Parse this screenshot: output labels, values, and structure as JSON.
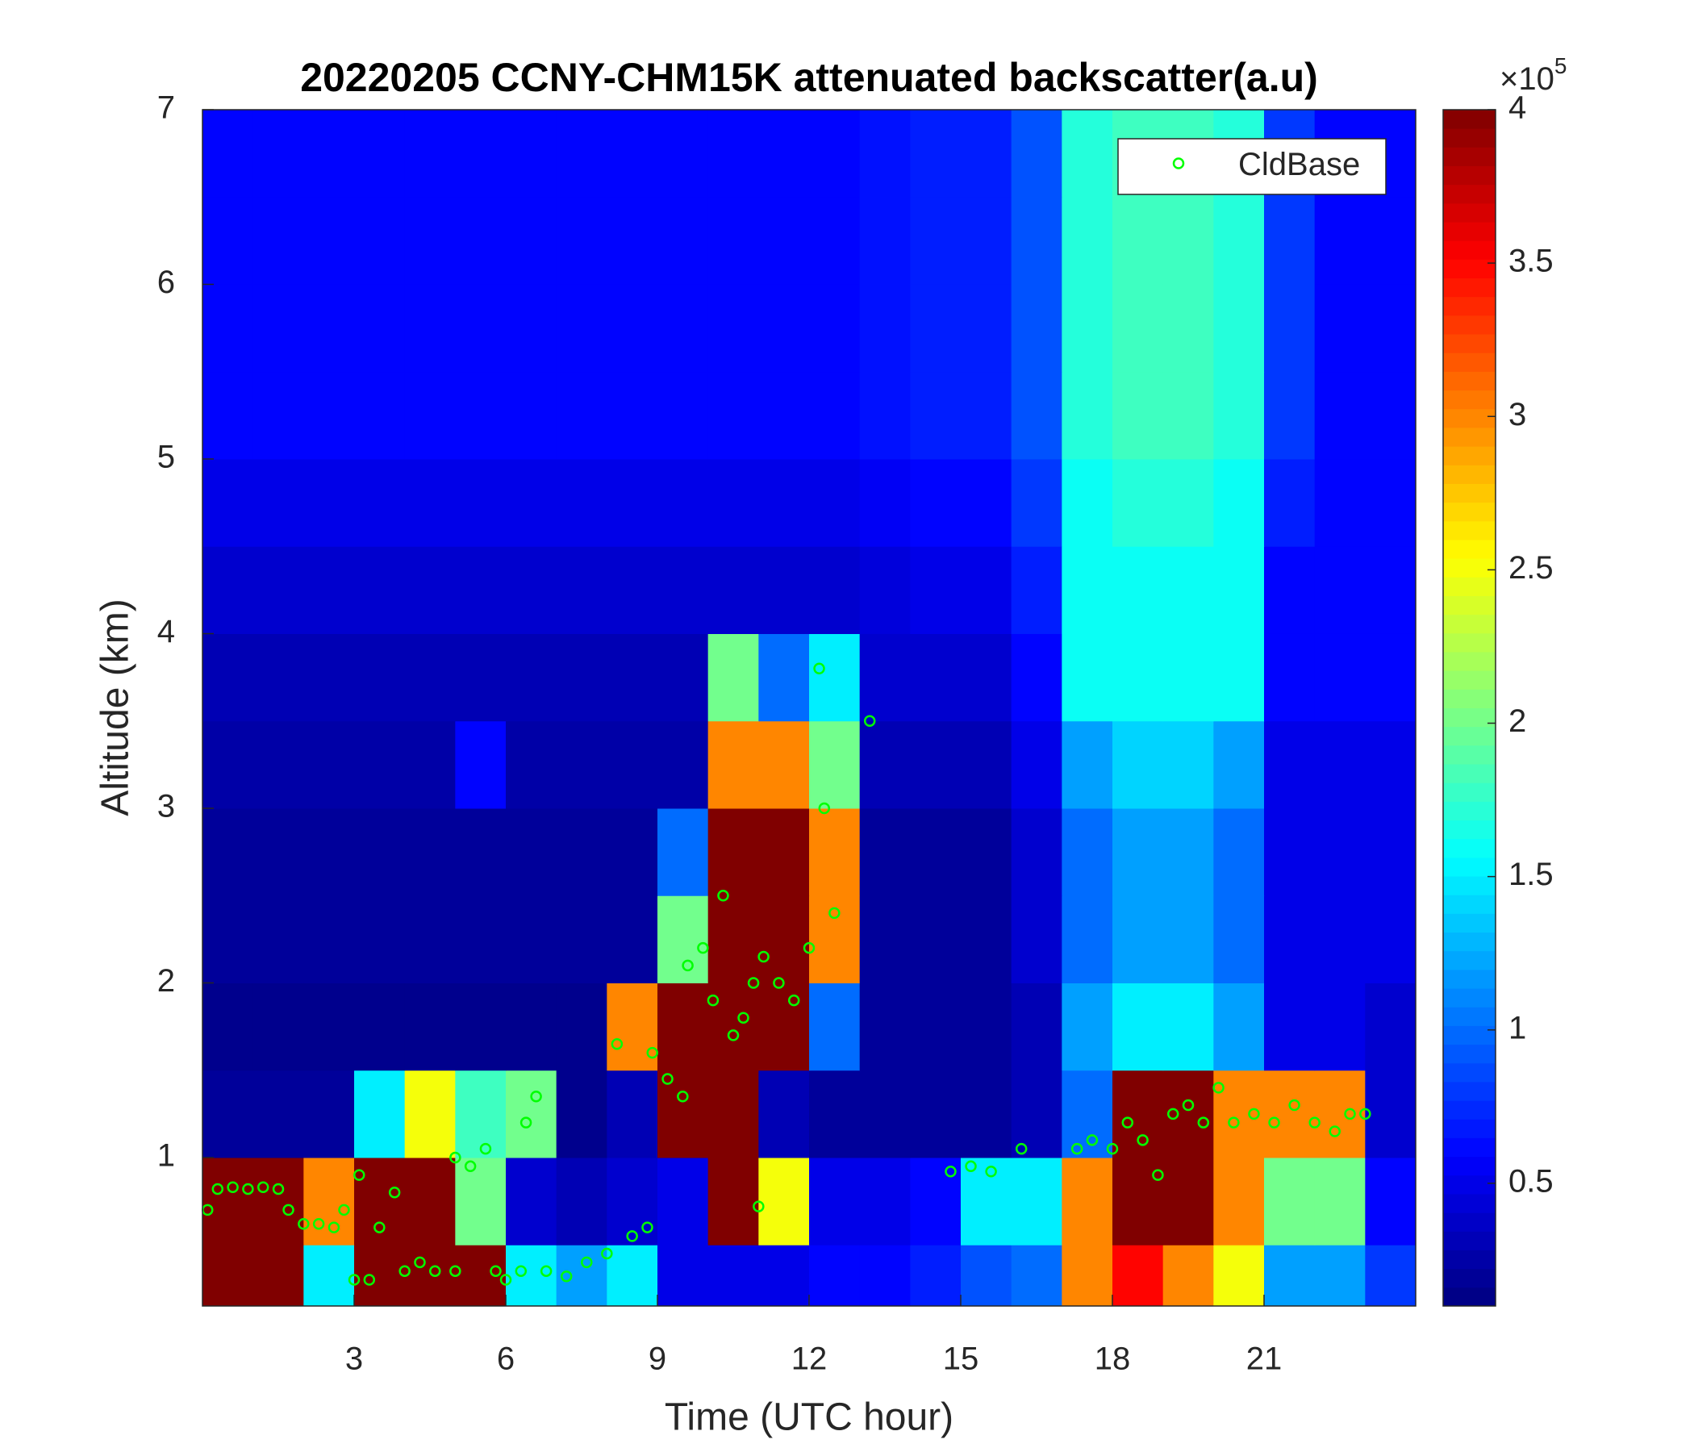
{
  "chart_data": {
    "type": "heatmap",
    "title": "20220205 CCNY-CHM15K attenuated backscatter(a.u)",
    "xlabel": "Time (UTC hour)",
    "ylabel": "Altitude (km)",
    "xlim": [
      0,
      24
    ],
    "xticks": [
      3,
      6,
      9,
      12,
      15,
      18,
      21
    ],
    "ylim": [
      0.15,
      7
    ],
    "yticks": [
      1,
      2,
      3,
      4,
      5,
      6,
      7
    ],
    "x_bins": [
      0,
      1,
      2,
      3,
      4,
      5,
      6,
      7,
      8,
      9,
      10,
      11,
      12,
      13,
      14,
      15,
      16,
      17,
      18,
      19,
      20,
      21,
      22,
      23,
      24
    ],
    "y_bins": [
      0.15,
      0.5,
      1,
      1.5,
      2,
      2.5,
      3,
      3.5,
      4,
      4.5,
      5,
      5.5,
      6,
      6.5,
      7
    ],
    "z": [
      [
        4,
        4,
        1.5,
        4,
        4,
        4,
        1.5,
        1.2,
        1.5,
        0.5,
        0.5,
        0.5,
        0.6,
        0.6,
        0.7,
        0.9,
        1,
        3,
        3.5,
        3,
        2.5,
        1.2,
        1.2,
        0.8
      ],
      [
        4,
        4,
        3,
        4,
        4,
        2,
        0.4,
        0.3,
        0.4,
        0.5,
        4,
        2.5,
        0.5,
        0.5,
        0.6,
        1.5,
        1.5,
        3,
        4,
        4,
        3,
        2,
        2,
        0.6
      ],
      [
        0.2,
        0.2,
        0.2,
        1.5,
        2.5,
        1.8,
        2,
        0.15,
        0.3,
        4,
        4,
        0.3,
        0.2,
        0.2,
        0.2,
        0.2,
        0.3,
        1,
        4,
        4,
        3,
        3,
        3,
        0.4
      ],
      [
        0.15,
        0.15,
        0.15,
        0.15,
        0.15,
        0.15,
        0.15,
        0.15,
        3,
        4,
        4,
        4,
        1,
        0.2,
        0.2,
        0.2,
        0.3,
        1.2,
        1.5,
        1.5,
        1.2,
        0.5,
        0.5,
        0.4
      ],
      [
        0.2,
        0.2,
        0.2,
        0.2,
        0.2,
        0.2,
        0.2,
        0.2,
        0.2,
        2,
        4,
        4,
        3,
        0.2,
        0.2,
        0.2,
        0.4,
        1,
        1.2,
        1.2,
        1,
        0.5,
        0.5,
        0.5
      ],
      [
        0.2,
        0.2,
        0.2,
        0.2,
        0.2,
        0.2,
        0.2,
        0.2,
        0.2,
        1,
        4,
        4,
        3,
        0.2,
        0.2,
        0.2,
        0.4,
        1,
        1.2,
        1.2,
        1,
        0.5,
        0.5,
        0.5
      ],
      [
        0.25,
        0.25,
        0.25,
        0.25,
        0.25,
        0.6,
        0.25,
        0.25,
        0.25,
        0.25,
        3,
        3,
        2,
        0.3,
        0.3,
        0.3,
        0.5,
        1.2,
        1.4,
        1.4,
        1.2,
        0.5,
        0.5,
        0.5
      ],
      [
        0.3,
        0.3,
        0.3,
        0.3,
        0.3,
        0.3,
        0.3,
        0.3,
        0.3,
        0.3,
        2,
        1,
        1.5,
        0.4,
        0.4,
        0.4,
        0.6,
        1.6,
        1.6,
        1.6,
        1.6,
        0.6,
        0.6,
        0.6
      ],
      [
        0.4,
        0.4,
        0.4,
        0.4,
        0.4,
        0.4,
        0.4,
        0.4,
        0.4,
        0.4,
        0.4,
        0.4,
        0.4,
        0.45,
        0.5,
        0.5,
        0.7,
        1.6,
        1.6,
        1.6,
        1.6,
        0.6,
        0.6,
        0.6
      ],
      [
        0.5,
        0.5,
        0.5,
        0.5,
        0.5,
        0.5,
        0.5,
        0.5,
        0.5,
        0.5,
        0.5,
        0.5,
        0.5,
        0.55,
        0.6,
        0.6,
        0.8,
        1.6,
        1.7,
        1.7,
        1.6,
        0.7,
        0.6,
        0.6
      ],
      [
        0.6,
        0.6,
        0.6,
        0.6,
        0.6,
        0.6,
        0.6,
        0.6,
        0.6,
        0.6,
        0.6,
        0.6,
        0.6,
        0.65,
        0.7,
        0.7,
        0.9,
        1.7,
        1.8,
        1.8,
        1.7,
        0.8,
        0.6,
        0.6
      ],
      [
        0.6,
        0.6,
        0.6,
        0.6,
        0.6,
        0.6,
        0.6,
        0.6,
        0.6,
        0.6,
        0.6,
        0.6,
        0.6,
        0.65,
        0.7,
        0.7,
        0.9,
        1.7,
        1.8,
        1.8,
        1.7,
        0.8,
        0.6,
        0.6
      ],
      [
        0.6,
        0.6,
        0.6,
        0.6,
        0.6,
        0.6,
        0.6,
        0.6,
        0.6,
        0.6,
        0.6,
        0.6,
        0.6,
        0.65,
        0.7,
        0.7,
        0.9,
        1.7,
        1.8,
        1.8,
        1.7,
        0.8,
        0.6,
        0.6
      ],
      [
        0.6,
        0.6,
        0.6,
        0.6,
        0.6,
        0.6,
        0.6,
        0.6,
        0.6,
        0.6,
        0.6,
        0.6,
        0.6,
        0.65,
        0.7,
        0.7,
        0.9,
        1.7,
        1.8,
        1.8,
        1.7,
        0.8,
        0.6,
        0.6
      ]
    ],
    "clim": [
      0.1,
      4
    ],
    "cticks": [
      0.5,
      1,
      1.5,
      2,
      2.5,
      3,
      3.5,
      4
    ],
    "colorbar_scale_base": "×10",
    "colorbar_scale_exponent": "5",
    "legend_position": "top-right",
    "series": [
      {
        "name": "CldBase",
        "color": "#00ff00",
        "x": [
          0.1,
          0.3,
          0.6,
          0.9,
          1.2,
          1.5,
          1.7,
          2,
          2.3,
          2.6,
          2.8,
          3,
          3.1,
          3.3,
          3.5,
          3.8,
          4,
          4.3,
          4.6,
          5,
          5,
          5.3,
          5.6,
          5.8,
          6,
          6.3,
          6.4,
          6.6,
          6.8,
          7.2,
          7.6,
          8,
          8.2,
          8.5,
          8.8,
          8.9,
          9.2,
          9.5,
          9.6,
          9.9,
          10.1,
          10.3,
          10.5,
          10.7,
          10.9,
          11.1,
          11,
          11.4,
          11.7,
          12,
          12.2,
          12.3,
          12.5,
          13.2,
          14.8,
          15.2,
          15.6,
          16.2,
          17.3,
          17.6,
          18,
          18.3,
          18.6,
          18.9,
          19.2,
          19.5,
          19.8,
          20.1,
          20.4,
          20.8,
          21.2,
          21.6,
          22,
          22.4,
          22.7,
          23
        ],
        "y": [
          0.7,
          0.82,
          0.83,
          0.82,
          0.83,
          0.82,
          0.7,
          0.62,
          0.62,
          0.6,
          0.7,
          0.3,
          0.9,
          0.3,
          0.6,
          0.8,
          0.35,
          0.4,
          0.35,
          0.35,
          1.0,
          0.95,
          1.05,
          0.35,
          0.3,
          0.35,
          1.2,
          1.35,
          0.35,
          0.32,
          0.4,
          0.45,
          1.65,
          0.55,
          0.6,
          1.6,
          1.45,
          1.35,
          2.1,
          2.2,
          1.9,
          2.5,
          1.7,
          1.8,
          2.0,
          2.15,
          0.72,
          2.0,
          1.9,
          2.2,
          3.8,
          3.0,
          2.4,
          3.5,
          0.92,
          0.95,
          0.92,
          1.05,
          1.05,
          1.1,
          1.05,
          1.2,
          1.1,
          0.9,
          1.25,
          1.3,
          1.2,
          1.4,
          1.2,
          1.25,
          1.2,
          1.3,
          1.2,
          1.15,
          1.25,
          1.25
        ]
      }
    ]
  }
}
